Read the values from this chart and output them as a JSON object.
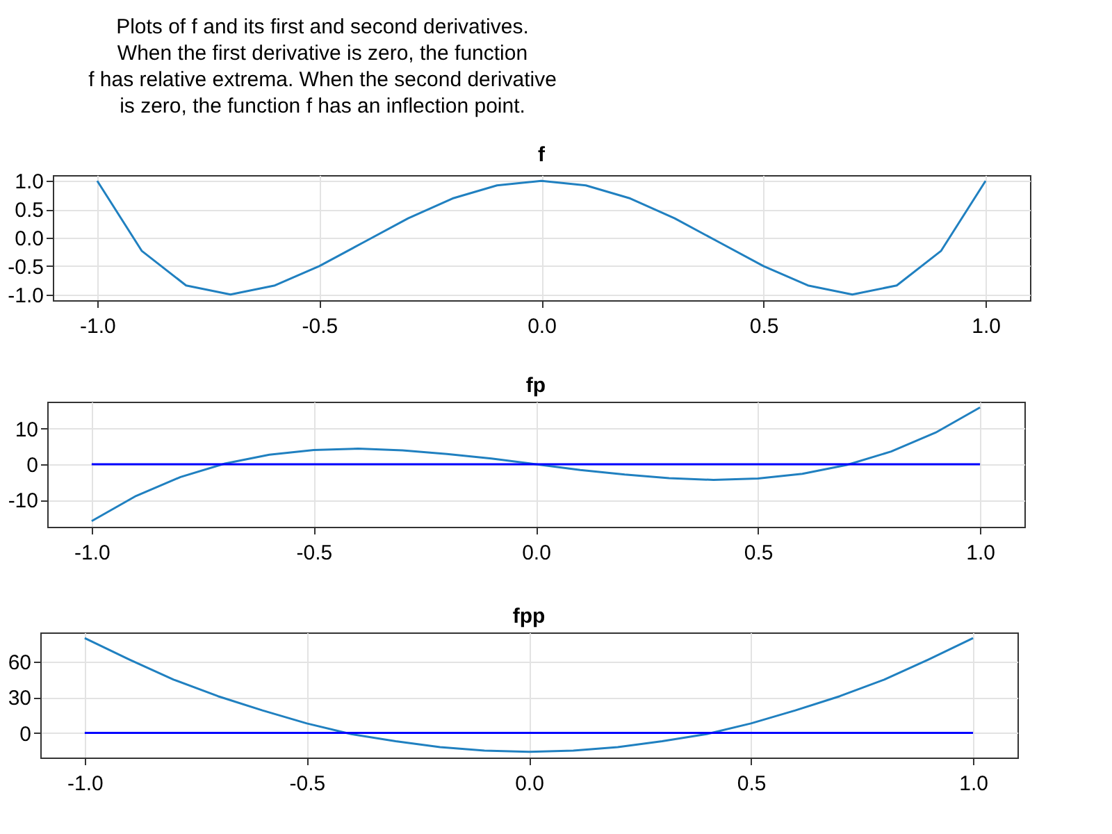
{
  "chart_data": [
    {
      "type": "other",
      "title": "Plots of f and its first and second derivatives.\nWhen the first derivative is zero, the function\nf has relative extrema. When the second derivative\nis zero, the function f has an inflection point."
    },
    {
      "type": "line",
      "title": "f",
      "grid": true,
      "xlim": [
        -1.1,
        1.1
      ],
      "xticks": [
        {
          "value": -1,
          "label": "-1.0"
        },
        {
          "value": -0.5,
          "label": "-0.5"
        },
        {
          "value": 0,
          "label": "0.0"
        },
        {
          "value": 0.5,
          "label": "0.5"
        },
        {
          "value": 1,
          "label": "1.0"
        }
      ],
      "ylim": [
        -1.1,
        1.1
      ],
      "yticks": [
        {
          "value": -1,
          "label": "-1.0"
        },
        {
          "value": -0.5,
          "label": "-0.5"
        },
        {
          "value": 0,
          "label": "0.0"
        },
        {
          "value": 0.5,
          "label": "0.5"
        },
        {
          "value": 1,
          "label": "1.0"
        }
      ],
      "series": [
        {
          "color": "#2080c0",
          "x": [
            -1,
            -0.9,
            -0.8,
            -0.7,
            -0.6,
            -0.5,
            -0.4,
            -0.3,
            -0.2,
            -0.1,
            0,
            0.1,
            0.2,
            0.3,
            0.4,
            0.5,
            0.6,
            0.7,
            0.8,
            0.9,
            1
          ],
          "values": [
            1,
            -0.23,
            -0.84,
            -1.0,
            -0.84,
            -0.5,
            -0.08,
            0.34,
            0.69,
            0.92,
            1,
            0.92,
            0.69,
            0.34,
            -0.08,
            -0.5,
            -0.84,
            -1.0,
            -0.84,
            -0.23,
            1
          ]
        }
      ]
    },
    {
      "type": "line",
      "title": "fp",
      "grid": true,
      "xlim": [
        -1.1,
        1.1
      ],
      "xticks": [
        {
          "value": -1,
          "label": "-1.0"
        },
        {
          "value": -0.5,
          "label": "-0.5"
        },
        {
          "value": 0,
          "label": "0.0"
        },
        {
          "value": 0.5,
          "label": "0.5"
        },
        {
          "value": 1,
          "label": "1.0"
        }
      ],
      "ylim": [
        -17.6,
        17.6
      ],
      "yticks": [
        -10,
        0,
        10
      ],
      "series": [
        {
          "color": "#2080c0",
          "x": [
            -1,
            -0.9,
            -0.8,
            -0.7,
            -0.6,
            -0.5,
            -0.4,
            -0.3,
            -0.2,
            -0.1,
            0,
            0.1,
            0.2,
            0.3,
            0.4,
            0.5,
            0.6,
            0.7,
            0.8,
            0.9,
            1
          ],
          "values": [
            -16,
            -8.9,
            -3.6,
            0.2,
            2.7,
            4,
            4.4,
            3.9,
            2.9,
            1.6,
            0,
            -1.6,
            -2.9,
            -3.9,
            -4.4,
            -4,
            -2.7,
            -0.2,
            3.6,
            8.9,
            16
          ]
        },
        {
          "color": "#0000ff",
          "x": [
            -1,
            1
          ],
          "values": [
            0,
            0
          ]
        }
      ]
    },
    {
      "type": "line",
      "title": "fpp",
      "grid": true,
      "xlim": [
        -1.1,
        1.1
      ],
      "xticks": [
        {
          "value": -1,
          "label": "-1.0"
        },
        {
          "value": -0.5,
          "label": "-0.5"
        },
        {
          "value": 0,
          "label": "0.0"
        },
        {
          "value": 0.5,
          "label": "0.5"
        },
        {
          "value": 1,
          "label": "1.0"
        }
      ],
      "ylim": [
        -20.8,
        84.8
      ],
      "yticks": [
        0,
        30,
        60
      ],
      "series": [
        {
          "color": "#2080c0",
          "x": [
            -1,
            -0.9,
            -0.8,
            -0.7,
            -0.6,
            -0.5,
            -0.4,
            -0.3,
            -0.2,
            -0.1,
            0,
            0.1,
            0.2,
            0.3,
            0.4,
            0.5,
            0.6,
            0.7,
            0.8,
            0.9,
            1
          ],
          "values": [
            80,
            62,
            45,
            31,
            19,
            8,
            -1,
            -7,
            -12,
            -15,
            -16,
            -15,
            -12,
            -7,
            -1,
            8,
            19,
            31,
            45,
            62,
            80
          ]
        },
        {
          "color": "#0000ff",
          "x": [
            -1,
            1
          ],
          "values": [
            0,
            0
          ]
        }
      ]
    }
  ]
}
